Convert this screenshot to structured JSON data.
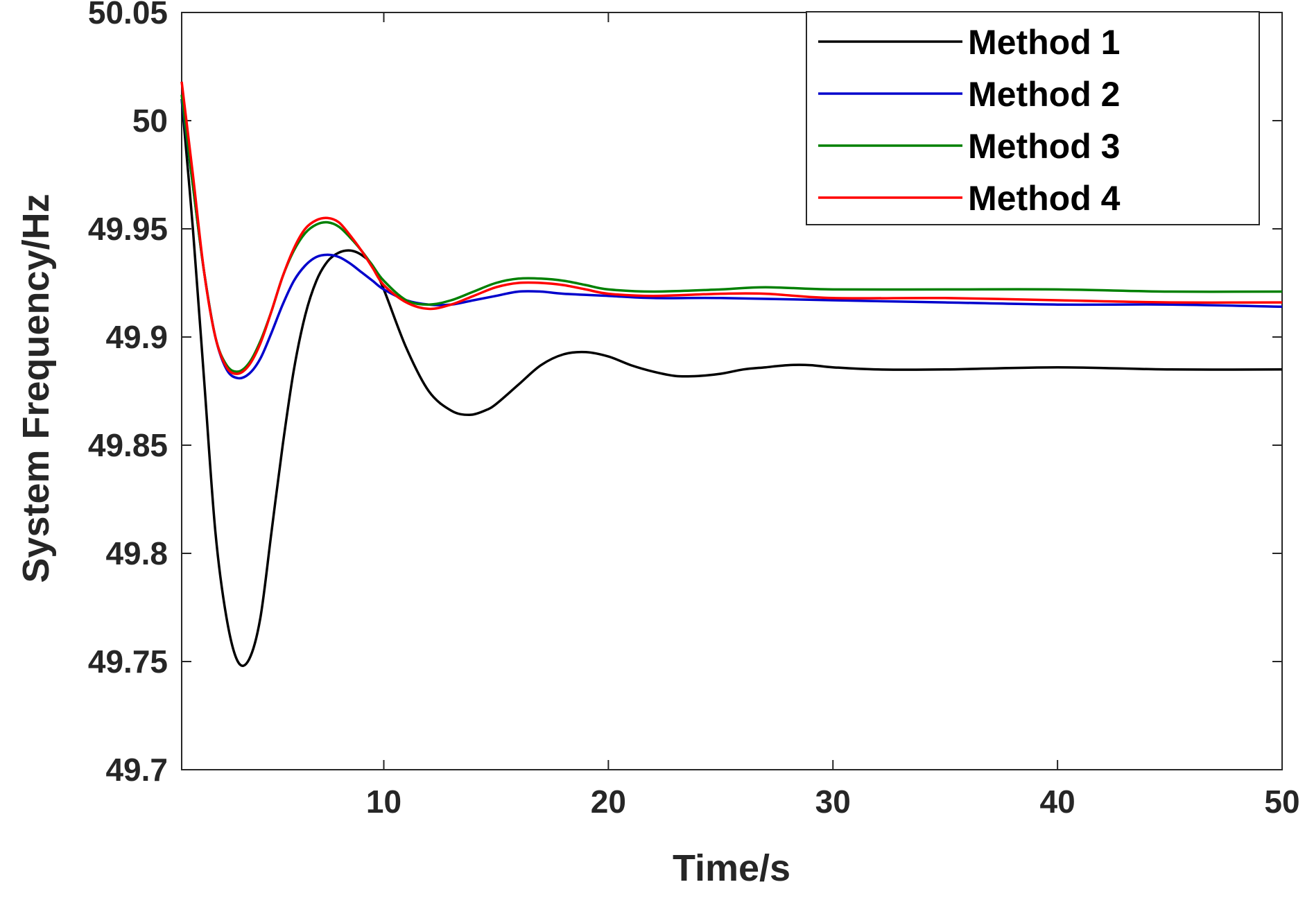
{
  "chart_data": {
    "type": "line",
    "title": "",
    "xlabel": "Time/s",
    "ylabel": "System Frequency/Hz",
    "xlim": [
      1,
      50
    ],
    "ylim": [
      49.7,
      50.05
    ],
    "xticks": [
      "10",
      "20",
      "30",
      "40",
      "50"
    ],
    "yticks": [
      "49.7",
      "49.75",
      "49.8",
      "49.85",
      "49.9",
      "49.95",
      "50",
      "50.05"
    ],
    "grid": false,
    "legend_position": "top-right",
    "series": [
      {
        "name": "Method 1",
        "color": "#000000",
        "points": [
          [
            1,
            50.01
          ],
          [
            1.5,
            49.95
          ],
          [
            2,
            49.88
          ],
          [
            2.5,
            49.81
          ],
          [
            3,
            49.77
          ],
          [
            3.5,
            49.75
          ],
          [
            4,
            49.751
          ],
          [
            4.5,
            49.77
          ],
          [
            5,
            49.81
          ],
          [
            5.5,
            49.85
          ],
          [
            6,
            49.885
          ],
          [
            6.5,
            49.91
          ],
          [
            7,
            49.926
          ],
          [
            7.5,
            49.935
          ],
          [
            8,
            49.939
          ],
          [
            8.5,
            49.94
          ],
          [
            9,
            49.938
          ],
          [
            9.5,
            49.933
          ],
          [
            10,
            49.922
          ],
          [
            11,
            49.895
          ],
          [
            12,
            49.875
          ],
          [
            13,
            49.866
          ],
          [
            13.8,
            49.864
          ],
          [
            14.5,
            49.866
          ],
          [
            15,
            49.869
          ],
          [
            16,
            49.878
          ],
          [
            17,
            49.887
          ],
          [
            18,
            49.892
          ],
          [
            19,
            49.893
          ],
          [
            20,
            49.891
          ],
          [
            21,
            49.887
          ],
          [
            22,
            49.884
          ],
          [
            23,
            49.882
          ],
          [
            24,
            49.882
          ],
          [
            25,
            49.883
          ],
          [
            26,
            49.885
          ],
          [
            27,
            49.886
          ],
          [
            28,
            49.887
          ],
          [
            29,
            49.887
          ],
          [
            30,
            49.886
          ],
          [
            32,
            49.885
          ],
          [
            35,
            49.885
          ],
          [
            40,
            49.886
          ],
          [
            45,
            49.885
          ],
          [
            50,
            49.885
          ]
        ]
      },
      {
        "name": "Method 2",
        "color": "#0000cc",
        "points": [
          [
            1,
            50.01
          ],
          [
            1.5,
            49.97
          ],
          [
            2,
            49.93
          ],
          [
            2.5,
            49.9
          ],
          [
            3,
            49.885
          ],
          [
            3.5,
            49.881
          ],
          [
            4,
            49.883
          ],
          [
            4.5,
            49.89
          ],
          [
            5,
            49.902
          ],
          [
            5.5,
            49.915
          ],
          [
            6,
            49.926
          ],
          [
            6.5,
            49.933
          ],
          [
            7,
            49.937
          ],
          [
            7.5,
            49.938
          ],
          [
            8,
            49.937
          ],
          [
            8.5,
            49.934
          ],
          [
            9,
            49.93
          ],
          [
            9.5,
            49.926
          ],
          [
            10,
            49.922
          ],
          [
            11,
            49.917
          ],
          [
            12,
            49.915
          ],
          [
            13,
            49.915
          ],
          [
            14,
            49.917
          ],
          [
            15,
            49.919
          ],
          [
            16,
            49.921
          ],
          [
            17,
            49.921
          ],
          [
            18,
            49.92
          ],
          [
            20,
            49.919
          ],
          [
            22,
            49.918
          ],
          [
            25,
            49.918
          ],
          [
            30,
            49.917
          ],
          [
            35,
            49.916
          ],
          [
            40,
            49.915
          ],
          [
            45,
            49.915
          ],
          [
            50,
            49.914
          ]
        ]
      },
      {
        "name": "Method 3",
        "color": "#008000",
        "points": [
          [
            1,
            50.012
          ],
          [
            1.5,
            49.97
          ],
          [
            2,
            49.93
          ],
          [
            2.5,
            49.9
          ],
          [
            3,
            49.887
          ],
          [
            3.5,
            49.884
          ],
          [
            4,
            49.888
          ],
          [
            4.5,
            49.898
          ],
          [
            5,
            49.912
          ],
          [
            5.5,
            49.928
          ],
          [
            6,
            49.94
          ],
          [
            6.5,
            49.948
          ],
          [
            7,
            49.952
          ],
          [
            7.5,
            49.953
          ],
          [
            8,
            49.951
          ],
          [
            8.5,
            49.946
          ],
          [
            9,
            49.94
          ],
          [
            9.5,
            49.933
          ],
          [
            10,
            49.926
          ],
          [
            11,
            49.917
          ],
          [
            12,
            49.915
          ],
          [
            13,
            49.917
          ],
          [
            14,
            49.921
          ],
          [
            15,
            49.925
          ],
          [
            16,
            49.927
          ],
          [
            17,
            49.927
          ],
          [
            18,
            49.926
          ],
          [
            19,
            49.924
          ],
          [
            20,
            49.922
          ],
          [
            22,
            49.921
          ],
          [
            25,
            49.922
          ],
          [
            27,
            49.923
          ],
          [
            30,
            49.922
          ],
          [
            35,
            49.922
          ],
          [
            40,
            49.922
          ],
          [
            45,
            49.921
          ],
          [
            50,
            49.921
          ]
        ]
      },
      {
        "name": "Method 4",
        "color": "#ff0000",
        "points": [
          [
            1,
            50.018
          ],
          [
            1.5,
            49.975
          ],
          [
            2,
            49.93
          ],
          [
            2.5,
            49.9
          ],
          [
            3,
            49.886
          ],
          [
            3.5,
            49.883
          ],
          [
            4,
            49.887
          ],
          [
            4.5,
            49.897
          ],
          [
            5,
            49.912
          ],
          [
            5.5,
            49.928
          ],
          [
            6,
            49.941
          ],
          [
            6.5,
            49.95
          ],
          [
            7,
            49.954
          ],
          [
            7.5,
            49.955
          ],
          [
            8,
            49.953
          ],
          [
            8.5,
            49.947
          ],
          [
            9,
            49.94
          ],
          [
            9.5,
            49.932
          ],
          [
            10,
            49.924
          ],
          [
            11,
            49.916
          ],
          [
            12,
            49.913
          ],
          [
            13,
            49.915
          ],
          [
            14,
            49.919
          ],
          [
            15,
            49.923
          ],
          [
            16,
            49.925
          ],
          [
            17,
            49.925
          ],
          [
            18,
            49.924
          ],
          [
            19,
            49.922
          ],
          [
            20,
            49.92
          ],
          [
            22,
            49.919
          ],
          [
            25,
            49.92
          ],
          [
            27,
            49.92
          ],
          [
            30,
            49.918
          ],
          [
            35,
            49.918
          ],
          [
            40,
            49.917
          ],
          [
            45,
            49.916
          ],
          [
            50,
            49.916
          ]
        ]
      }
    ]
  }
}
